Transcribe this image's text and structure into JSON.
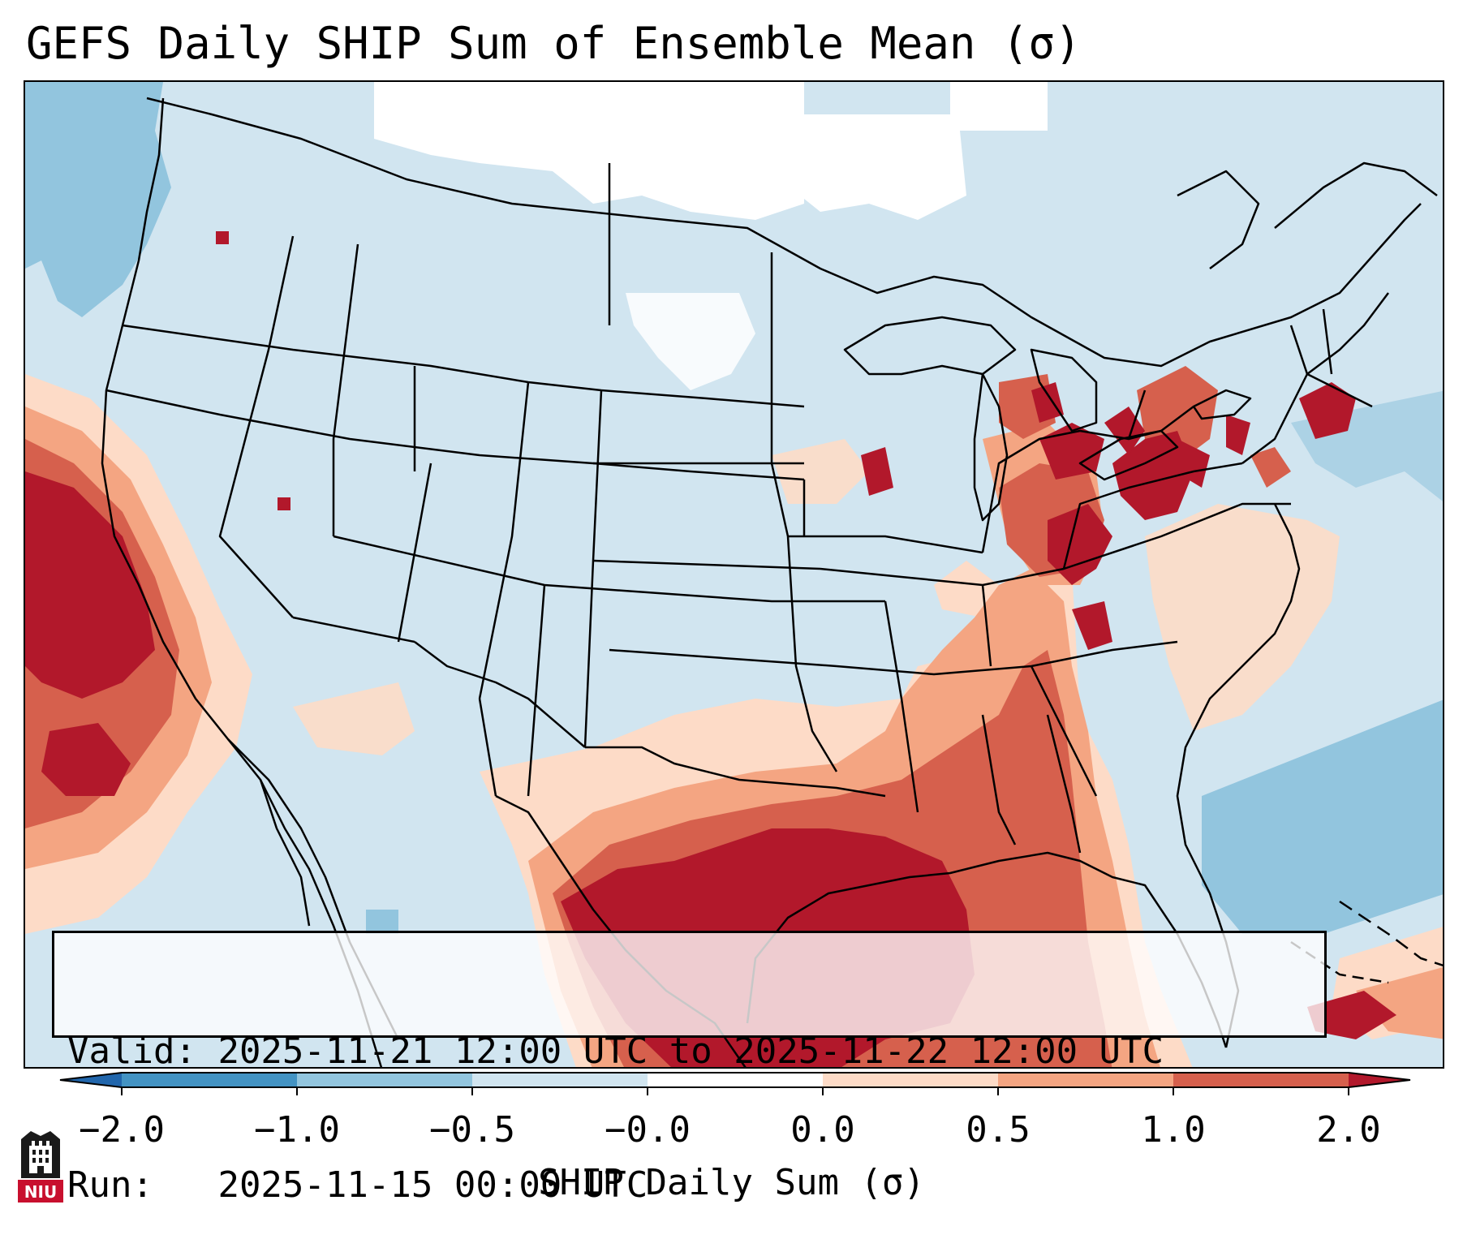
{
  "title": "GEFS Daily SHIP Sum of Ensemble Mean (σ)",
  "info": {
    "valid_label": "Valid:",
    "valid_value": "2025-11-21 12:00 UTC to 2025-11-22 12:00 UTC",
    "run_label": "Run:",
    "run_value": "2025-11-15 00:00 UTC"
  },
  "colorbar": {
    "label": "SHIP Daily Sum (σ)",
    "ticks": [
      "−2.0",
      "−1.0",
      "−0.5",
      "−0.0",
      "0.0",
      "0.5",
      "1.0",
      "2.0"
    ],
    "colors": [
      "#2166ac",
      "#4393c3",
      "#92c5de",
      "#d1e5f0",
      "#ffffff",
      "#fddbc7",
      "#f4a582",
      "#d6604d",
      "#b2182b"
    ],
    "extend": "both"
  },
  "logo": {
    "text": "NIU",
    "colors": {
      "shield": "#1a1a1a",
      "banner": "#c8102e"
    }
  },
  "map_colors": {
    "background": "#d1e5f0",
    "near_zero": "#ffffff",
    "slightly_negative": "#92c5de",
    "slightly_positive": "#fddbc7",
    "moderate_positive": "#f4a582",
    "high_positive": "#d6604d",
    "very_high_positive": "#b2182b",
    "border": "#000000"
  }
}
